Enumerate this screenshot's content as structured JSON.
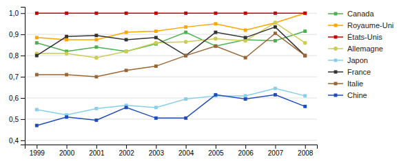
{
  "chart_data": {
    "type": "line",
    "x": [
      1999,
      2000,
      2001,
      2002,
      2003,
      2004,
      2005,
      2006,
      2007,
      2008
    ],
    "xlim": [
      1998.6,
      2008.4
    ],
    "xticks": [
      1999,
      2000,
      2001,
      2002,
      2003,
      2004,
      2005,
      2006,
      2007,
      2008
    ],
    "ylim": [
      0.38,
      1.03
    ],
    "yticks": [
      {
        "value": 0.4,
        "label": "0,4"
      },
      {
        "value": 0.5,
        "label": "0,5"
      },
      {
        "value": 0.6,
        "label": "0,6"
      },
      {
        "value": 0.7,
        "label": "0,7"
      },
      {
        "value": 0.8,
        "label": "0,8"
      },
      {
        "value": 0.9,
        "label": "0,9"
      },
      {
        "value": 1.0,
        "label": "1,0"
      }
    ],
    "grid": true,
    "legend": "right",
    "series": [
      {
        "name": "Canada",
        "color": "#4CAF50",
        "marker": "square",
        "values": [
          0.86,
          0.82,
          0.84,
          0.82,
          0.855,
          0.91,
          0.845,
          0.875,
          0.87,
          0.915
        ]
      },
      {
        "name": "Royaume-Uni",
        "color": "#FFA500",
        "marker": "square",
        "values": [
          0.885,
          0.875,
          0.875,
          0.91,
          0.915,
          0.935,
          0.95,
          0.92,
          0.955,
          1.0
        ]
      },
      {
        "name": "États-Unis",
        "color": "#CC0000",
        "marker": "square",
        "values": [
          1.0,
          1.0,
          1.0,
          1.0,
          1.0,
          1.0,
          1.0,
          1.0,
          1.0,
          1.0
        ]
      },
      {
        "name": "Allemagne",
        "color": "#CCCC55",
        "marker": "circle",
        "values": [
          0.81,
          0.81,
          0.79,
          0.82,
          0.86,
          0.865,
          0.88,
          0.87,
          0.955,
          0.86
        ]
      },
      {
        "name": "Japon",
        "color": "#87CEEB",
        "marker": "square",
        "values": [
          0.545,
          0.52,
          0.55,
          0.565,
          0.555,
          0.595,
          0.61,
          0.61,
          0.645,
          0.61
        ]
      },
      {
        "name": "France",
        "color": "#333333",
        "marker": "square",
        "values": [
          0.8,
          0.89,
          0.895,
          0.875,
          0.885,
          0.8,
          0.91,
          0.885,
          0.935,
          0.8
        ]
      },
      {
        "name": "Italie",
        "color": "#996633",
        "marker": "square",
        "values": [
          0.71,
          0.71,
          0.7,
          0.73,
          0.75,
          0.8,
          0.845,
          0.79,
          0.905,
          0.8
        ]
      },
      {
        "name": "Chine",
        "color": "#1E4DB7",
        "marker": "square",
        "values": [
          0.47,
          0.51,
          0.495,
          0.555,
          0.505,
          0.505,
          0.615,
          0.595,
          0.615,
          0.56
        ]
      }
    ]
  }
}
